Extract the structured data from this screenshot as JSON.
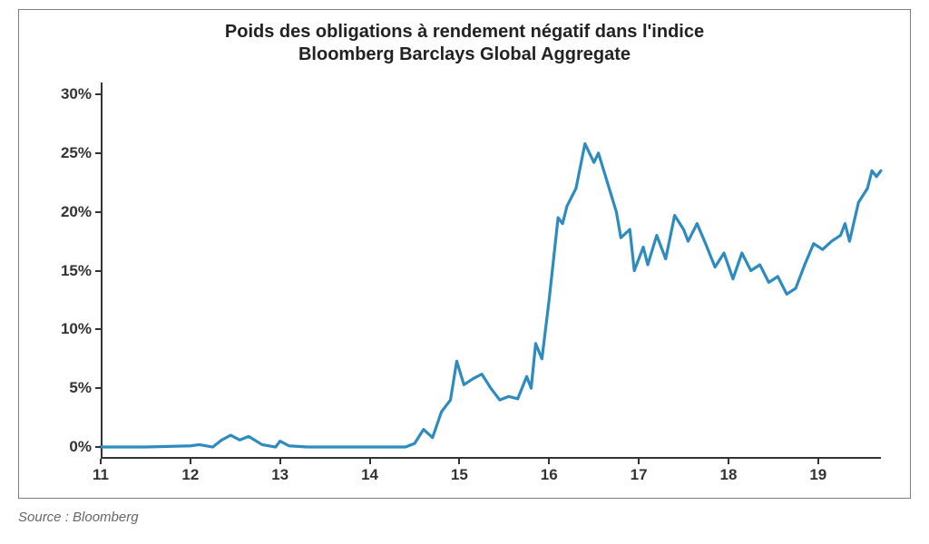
{
  "chart": {
    "type": "line",
    "title_line1": "Poids des obligations à rendement négatif dans l'indice",
    "title_line2": "Bloomberg Barclays Global Aggregate",
    "title_fontsize": 20,
    "title_color": "#222222",
    "axis_label_fontsize": 17,
    "axis_label_color": "#333333",
    "background_color": "#ffffff",
    "frame_border_color": "#7d7d7d",
    "line_color": "#2e8bc0",
    "line_width": 3.2,
    "x": {
      "min": 11,
      "max": 19.7,
      "ticks": [
        11,
        12,
        13,
        14,
        15,
        16,
        17,
        18,
        19
      ],
      "tick_labels": [
        "11",
        "12",
        "13",
        "14",
        "15",
        "16",
        "17",
        "18",
        "19"
      ]
    },
    "y": {
      "min": -1,
      "max": 31,
      "ticks": [
        0,
        5,
        10,
        15,
        20,
        25,
        30
      ],
      "tick_labels": [
        "0%",
        "5%",
        "10%",
        "15%",
        "20%",
        "25%",
        "30%"
      ]
    },
    "series": [
      {
        "x": 11.0,
        "y": 0.0
      },
      {
        "x": 11.5,
        "y": 0.0
      },
      {
        "x": 12.0,
        "y": 0.1
      },
      {
        "x": 12.1,
        "y": 0.2
      },
      {
        "x": 12.25,
        "y": 0.0
      },
      {
        "x": 12.35,
        "y": 0.6
      },
      {
        "x": 12.45,
        "y": 1.0
      },
      {
        "x": 12.55,
        "y": 0.6
      },
      {
        "x": 12.65,
        "y": 0.9
      },
      {
        "x": 12.8,
        "y": 0.2
      },
      {
        "x": 12.95,
        "y": 0.0
      },
      {
        "x": 13.0,
        "y": 0.5
      },
      {
        "x": 13.1,
        "y": 0.1
      },
      {
        "x": 13.3,
        "y": 0.0
      },
      {
        "x": 14.0,
        "y": 0.0
      },
      {
        "x": 14.4,
        "y": 0.0
      },
      {
        "x": 14.5,
        "y": 0.3
      },
      {
        "x": 14.6,
        "y": 1.5
      },
      {
        "x": 14.7,
        "y": 0.8
      },
      {
        "x": 14.8,
        "y": 3.0
      },
      {
        "x": 14.9,
        "y": 4.0
      },
      {
        "x": 14.97,
        "y": 7.3
      },
      {
        "x": 15.05,
        "y": 5.3
      },
      {
        "x": 15.15,
        "y": 5.8
      },
      {
        "x": 15.25,
        "y": 6.2
      },
      {
        "x": 15.35,
        "y": 5.0
      },
      {
        "x": 15.45,
        "y": 4.0
      },
      {
        "x": 15.55,
        "y": 4.3
      },
      {
        "x": 15.65,
        "y": 4.1
      },
      {
        "x": 15.75,
        "y": 6.0
      },
      {
        "x": 15.8,
        "y": 5.0
      },
      {
        "x": 15.85,
        "y": 8.8
      },
      {
        "x": 15.92,
        "y": 7.5
      },
      {
        "x": 16.0,
        "y": 12.5
      },
      {
        "x": 16.1,
        "y": 19.5
      },
      {
        "x": 16.15,
        "y": 19.0
      },
      {
        "x": 16.2,
        "y": 20.5
      },
      {
        "x": 16.3,
        "y": 22.0
      },
      {
        "x": 16.4,
        "y": 25.8
      },
      {
        "x": 16.5,
        "y": 24.2
      },
      {
        "x": 16.55,
        "y": 25.0
      },
      {
        "x": 16.65,
        "y": 22.5
      },
      {
        "x": 16.75,
        "y": 20.0
      },
      {
        "x": 16.8,
        "y": 17.8
      },
      {
        "x": 16.9,
        "y": 18.5
      },
      {
        "x": 16.95,
        "y": 15.0
      },
      {
        "x": 17.05,
        "y": 17.0
      },
      {
        "x": 17.1,
        "y": 15.5
      },
      {
        "x": 17.2,
        "y": 18.0
      },
      {
        "x": 17.3,
        "y": 16.0
      },
      {
        "x": 17.4,
        "y": 19.7
      },
      {
        "x": 17.5,
        "y": 18.5
      },
      {
        "x": 17.55,
        "y": 17.5
      },
      {
        "x": 17.65,
        "y": 19.0
      },
      {
        "x": 17.75,
        "y": 17.2
      },
      {
        "x": 17.85,
        "y": 15.3
      },
      {
        "x": 17.95,
        "y": 16.5
      },
      {
        "x": 18.05,
        "y": 14.3
      },
      {
        "x": 18.15,
        "y": 16.5
      },
      {
        "x": 18.25,
        "y": 15.0
      },
      {
        "x": 18.35,
        "y": 15.5
      },
      {
        "x": 18.45,
        "y": 14.0
      },
      {
        "x": 18.55,
        "y": 14.5
      },
      {
        "x": 18.65,
        "y": 13.0
      },
      {
        "x": 18.75,
        "y": 13.5
      },
      {
        "x": 18.85,
        "y": 15.5
      },
      {
        "x": 18.95,
        "y": 17.3
      },
      {
        "x": 19.05,
        "y": 16.8
      },
      {
        "x": 19.15,
        "y": 17.5
      },
      {
        "x": 19.25,
        "y": 18.0
      },
      {
        "x": 19.3,
        "y": 19.0
      },
      {
        "x": 19.35,
        "y": 17.5
      },
      {
        "x": 19.45,
        "y": 20.8
      },
      {
        "x": 19.55,
        "y": 22.0
      },
      {
        "x": 19.6,
        "y": 23.5
      },
      {
        "x": 19.65,
        "y": 23.0
      },
      {
        "x": 19.7,
        "y": 23.5
      }
    ]
  },
  "source_label": "Source : Bloomberg",
  "source_fontsize": 15,
  "source_color": "#666666"
}
